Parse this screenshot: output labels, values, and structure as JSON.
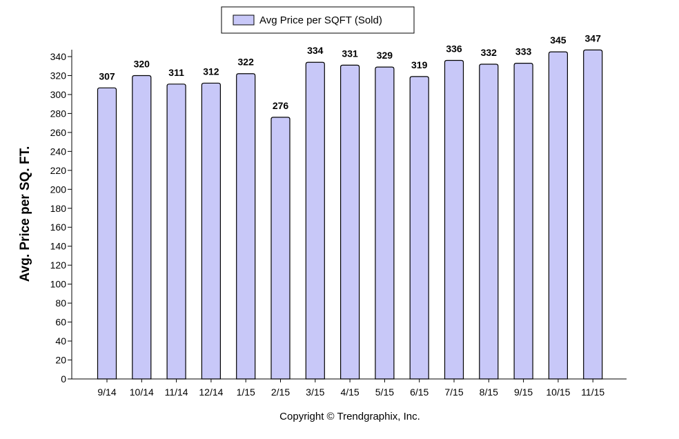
{
  "chart_data": {
    "type": "bar",
    "categories": [
      "9/14",
      "10/14",
      "11/14",
      "12/14",
      "1/15",
      "2/15",
      "3/15",
      "4/15",
      "5/15",
      "6/15",
      "7/15",
      "8/15",
      "9/15",
      "10/15",
      "11/15"
    ],
    "series": [
      {
        "name": "Avg Price per SQFT (Sold)",
        "values": [
          307,
          320,
          311,
          312,
          322,
          276,
          334,
          331,
          329,
          319,
          336,
          332,
          333,
          345,
          347
        ]
      }
    ],
    "title": "",
    "xlabel": "",
    "ylabel": "Avg. Price per SQ. FT.",
    "ylim": [
      0,
      340
    ],
    "yticks": [
      0,
      20,
      40,
      60,
      80,
      100,
      120,
      140,
      160,
      180,
      200,
      220,
      240,
      260,
      280,
      300,
      320,
      340
    ],
    "data_labels": true,
    "grid": false,
    "legend": "top-center",
    "bar_color": "#c8c8f8",
    "bar_outline_color": "#000000"
  },
  "footer": "Copyright © Trendgraphix, Inc."
}
